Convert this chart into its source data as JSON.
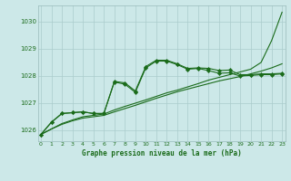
{
  "background_color": "#cce8e8",
  "plot_bg_color": "#cce8e8",
  "grid_color": "#aacccc",
  "line_color": "#1a6b1a",
  "xlabel": "Graphe pression niveau de la mer (hPa)",
  "ylim": [
    1025.6,
    1030.6
  ],
  "xlim": [
    -0.3,
    23.3
  ],
  "yticks": [
    1026,
    1027,
    1028,
    1029,
    1030
  ],
  "xticks": [
    0,
    1,
    2,
    3,
    4,
    5,
    6,
    7,
    8,
    9,
    10,
    11,
    12,
    13,
    14,
    15,
    16,
    17,
    18,
    19,
    20,
    21,
    22,
    23
  ],
  "series0": [
    1025.85,
    1026.3,
    1026.62,
    1026.65,
    1026.68,
    1026.62,
    1026.62,
    1027.8,
    1027.75,
    1027.45,
    1028.35,
    1028.58,
    1028.58,
    1028.45,
    1028.28,
    1028.3,
    1028.28,
    1028.2,
    1028.22,
    1028.05,
    1028.05,
    1028.08,
    1028.08,
    1028.1
  ],
  "series1": [
    1025.85,
    1026.3,
    1026.62,
    1026.65,
    1026.68,
    1026.62,
    1026.62,
    1027.78,
    1027.7,
    1027.4,
    1028.3,
    1028.55,
    1028.55,
    1028.42,
    1028.25,
    1028.28,
    1028.2,
    1028.1,
    1028.12,
    1028.0,
    1028.02,
    1028.05,
    1028.05,
    1028.08
  ],
  "trend1": [
    1025.85,
    1026.05,
    1026.25,
    1026.38,
    1026.5,
    1026.55,
    1026.6,
    1026.75,
    1026.88,
    1027.0,
    1027.12,
    1027.25,
    1027.38,
    1027.48,
    1027.6,
    1027.72,
    1027.85,
    1027.95,
    1028.05,
    1028.15,
    1028.25,
    1028.5,
    1029.3,
    1030.35
  ],
  "trend2": [
    1025.85,
    1026.05,
    1026.22,
    1026.35,
    1026.45,
    1026.5,
    1026.55,
    1026.68,
    1026.8,
    1026.92,
    1027.05,
    1027.18,
    1027.3,
    1027.42,
    1027.52,
    1027.62,
    1027.72,
    1027.82,
    1027.9,
    1027.98,
    1028.08,
    1028.18,
    1028.3,
    1028.45
  ]
}
